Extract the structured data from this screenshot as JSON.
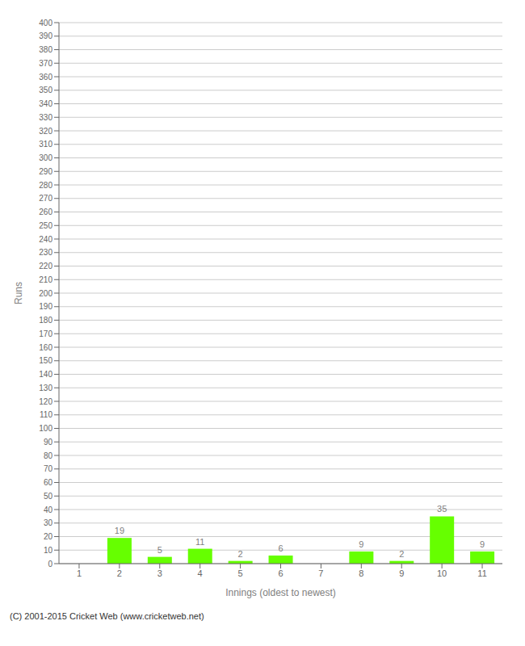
{
  "chart_data": {
    "type": "bar",
    "xlabel": "Innings (oldest to newest)",
    "ylabel": "Runs",
    "categories": [
      1,
      2,
      3,
      4,
      5,
      6,
      7,
      8,
      9,
      10,
      11
    ],
    "values": [
      0,
      19,
      5,
      11,
      2,
      6,
      0,
      9,
      2,
      35,
      9
    ],
    "color": "#66ff00",
    "ylim": [
      0,
      400
    ],
    "yticks": [
      0,
      10,
      20,
      30,
      40,
      50,
      60,
      70,
      80,
      90,
      100,
      110,
      120,
      130,
      140,
      150,
      160,
      170,
      180,
      190,
      200,
      210,
      220,
      230,
      240,
      250,
      260,
      270,
      280,
      290,
      300,
      310,
      320,
      330,
      340,
      350,
      360,
      370,
      380,
      390,
      400
    ],
    "grid": true,
    "data_labels": true,
    "annotations": [
      "(C) 2001-2015 Cricket Web (www.cricketweb.net)"
    ]
  }
}
